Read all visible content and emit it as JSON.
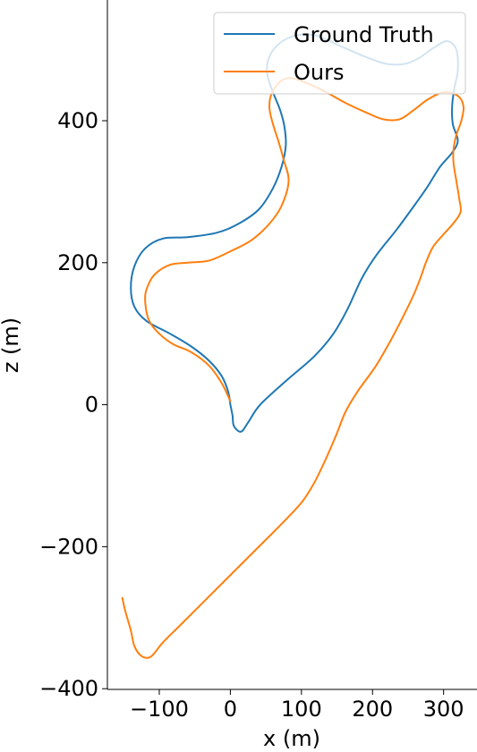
{
  "chart_data": {
    "type": "line",
    "xlabel": "x (m)",
    "ylabel": "z (m)",
    "xlim": [
      -173,
      347
    ],
    "ylim": [
      -401,
      570
    ],
    "xticks": [
      -100,
      0,
      100,
      200,
      300
    ],
    "yticks": [
      -400,
      -200,
      0,
      200,
      400
    ],
    "xtick_labels": [
      "−100",
      "0",
      "100",
      "200",
      "300"
    ],
    "ytick_labels": [
      "−400",
      "−200",
      "0",
      "200",
      "400"
    ],
    "grid": false,
    "legend_position": "top-right",
    "series": [
      {
        "name": "Ground Truth",
        "color": "#1f77b4",
        "points": [
          [
            0,
            0
          ],
          [
            -3,
            18
          ],
          [
            -12,
            40
          ],
          [
            -30,
            62
          ],
          [
            -55,
            82
          ],
          [
            -85,
            100
          ],
          [
            -118,
            118
          ],
          [
            -135,
            138
          ],
          [
            -140,
            165
          ],
          [
            -135,
            195
          ],
          [
            -120,
            220
          ],
          [
            -95,
            234
          ],
          [
            -60,
            236
          ],
          [
            -20,
            242
          ],
          [
            10,
            254
          ],
          [
            40,
            275
          ],
          [
            60,
            305
          ],
          [
            72,
            335
          ],
          [
            78,
            365
          ],
          [
            76,
            392
          ],
          [
            70,
            415
          ],
          [
            60,
            440
          ],
          [
            52,
            465
          ],
          [
            54,
            488
          ],
          [
            68,
            508
          ],
          [
            92,
            520
          ],
          [
            120,
            520
          ],
          [
            155,
            505
          ],
          [
            190,
            490
          ],
          [
            220,
            480
          ],
          [
            245,
            480
          ],
          [
            265,
            488
          ],
          [
            285,
            502
          ],
          [
            305,
            512
          ],
          [
            318,
            500
          ],
          [
            320,
            470
          ],
          [
            315,
            445
          ],
          [
            312,
            420
          ],
          [
            313,
            395
          ],
          [
            320,
            372
          ],
          [
            312,
            355
          ],
          [
            295,
            335
          ],
          [
            278,
            308
          ],
          [
            262,
            285
          ],
          [
            235,
            248
          ],
          [
            205,
            210
          ],
          [
            185,
            178
          ],
          [
            165,
            135
          ],
          [
            145,
            100
          ],
          [
            118,
            68
          ],
          [
            80,
            35
          ],
          [
            42,
            0
          ],
          [
            25,
            -25
          ],
          [
            15,
            -38
          ],
          [
            5,
            -30
          ],
          [
            3,
            -15
          ],
          [
            0,
            0
          ]
        ]
      },
      {
        "name": "Ours",
        "color": "#ff7f0e",
        "points": [
          [
            -152,
            -272
          ],
          [
            -148,
            -290
          ],
          [
            -140,
            -318
          ],
          [
            -135,
            -340
          ],
          [
            -125,
            -354
          ],
          [
            -112,
            -355
          ],
          [
            -95,
            -335
          ],
          [
            -70,
            -310
          ],
          [
            -40,
            -280
          ],
          [
            -5,
            -245
          ],
          [
            35,
            -205
          ],
          [
            70,
            -170
          ],
          [
            100,
            -138
          ],
          [
            118,
            -110
          ],
          [
            135,
            -75
          ],
          [
            150,
            -40
          ],
          [
            162,
            -10
          ],
          [
            180,
            20
          ],
          [
            205,
            55
          ],
          [
            228,
            95
          ],
          [
            245,
            128
          ],
          [
            258,
            155
          ],
          [
            268,
            180
          ],
          [
            275,
            200
          ],
          [
            285,
            222
          ],
          [
            300,
            240
          ],
          [
            315,
            257
          ],
          [
            324,
            272
          ],
          [
            322,
            290
          ],
          [
            318,
            315
          ],
          [
            314,
            340
          ],
          [
            314,
            360
          ],
          [
            318,
            380
          ],
          [
            325,
            400
          ],
          [
            328,
            420
          ],
          [
            320,
            435
          ],
          [
            300,
            440
          ],
          [
            278,
            430
          ],
          [
            258,
            415
          ],
          [
            238,
            402
          ],
          [
            215,
            402
          ],
          [
            190,
            412
          ],
          [
            162,
            425
          ],
          [
            135,
            440
          ],
          [
            110,
            452
          ],
          [
            85,
            460
          ],
          [
            70,
            455
          ],
          [
            58,
            438
          ],
          [
            55,
            418
          ],
          [
            60,
            395
          ],
          [
            68,
            370
          ],
          [
            75,
            345
          ],
          [
            82,
            315
          ],
          [
            72,
            280
          ],
          [
            55,
            255
          ],
          [
            30,
            232
          ],
          [
            0,
            216
          ],
          [
            -30,
            203
          ],
          [
            -60,
            200
          ],
          [
            -85,
            197
          ],
          [
            -105,
            185
          ],
          [
            -115,
            170
          ],
          [
            -120,
            150
          ],
          [
            -115,
            120
          ],
          [
            -100,
            100
          ],
          [
            -80,
            85
          ],
          [
            -55,
            74
          ],
          [
            -30,
            55
          ],
          [
            -12,
            30
          ],
          [
            0,
            5
          ]
        ]
      }
    ]
  }
}
